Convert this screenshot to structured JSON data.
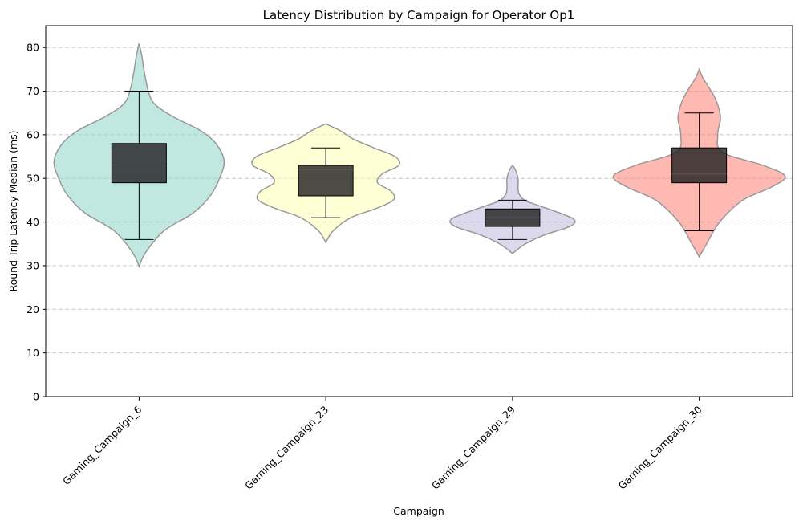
{
  "chart_data": {
    "type": "violin",
    "title": "Latency Distribution by Campaign for Operator Op1",
    "xlabel": "Campaign",
    "ylabel": "Round Trip Latency Median (ms)",
    "ylim": [
      0,
      85
    ],
    "yticks": [
      0,
      10,
      20,
      30,
      40,
      50,
      60,
      70,
      80
    ],
    "grid": "y-dashed",
    "categories": [
      "Gaming_Campaign_6",
      "Gaming_Campaign_23",
      "Gaming_Campaign_29",
      "Gaming_Campaign_30"
    ],
    "series": [
      {
        "category": "Gaming_Campaign_6",
        "color": "#8dd3c7",
        "box": {
          "whisker_low": 36,
          "q1": 49,
          "median": 54,
          "q3": 58,
          "whisker_high": 70
        },
        "density": [
          [
            29.8,
            0
          ],
          [
            33,
            0.07
          ],
          [
            38,
            0.27
          ],
          [
            42,
            0.58
          ],
          [
            46,
            0.77
          ],
          [
            50,
            0.87
          ],
          [
            54,
            0.92
          ],
          [
            58,
            0.83
          ],
          [
            61,
            0.66
          ],
          [
            64,
            0.38
          ],
          [
            67,
            0.17
          ],
          [
            70,
            0.1
          ],
          [
            74,
            0.06
          ],
          [
            78,
            0.03
          ],
          [
            81,
            0
          ]
        ]
      },
      {
        "category": "Gaming_Campaign_23",
        "color": "#ffffb3",
        "box": {
          "whisker_low": 41,
          "q1": 46,
          "median": 52,
          "q3": 53,
          "whisker_high": 57
        },
        "density": [
          [
            35.3,
            0
          ],
          [
            38,
            0.08
          ],
          [
            41,
            0.27
          ],
          [
            43,
            0.53
          ],
          [
            45,
            0.73
          ],
          [
            47,
            0.71
          ],
          [
            49,
            0.56
          ],
          [
            51,
            0.61
          ],
          [
            53,
            0.79
          ],
          [
            55,
            0.75
          ],
          [
            57,
            0.52
          ],
          [
            59,
            0.3
          ],
          [
            61,
            0.15
          ],
          [
            62.5,
            0
          ]
        ]
      },
      {
        "category": "Gaming_Campaign_29",
        "color": "#bebada",
        "box": {
          "whisker_low": 36,
          "q1": 39,
          "median": 41,
          "q3": 43,
          "whisker_high": 45
        },
        "density": [
          [
            32.8,
            0
          ],
          [
            35,
            0.14
          ],
          [
            37,
            0.34
          ],
          [
            39,
            0.62
          ],
          [
            40.5,
            0.67
          ],
          [
            42,
            0.52
          ],
          [
            44,
            0.25
          ],
          [
            45,
            0.13
          ],
          [
            46.5,
            0.07
          ],
          [
            48,
            0.06
          ],
          [
            50,
            0.06
          ],
          [
            52,
            0.03
          ],
          [
            53,
            0
          ]
        ]
      },
      {
        "category": "Gaming_Campaign_30",
        "color": "#fb8072",
        "box": {
          "whisker_low": 38,
          "q1": 49,
          "median": 51,
          "q3": 57,
          "whisker_high": 65
        },
        "density": [
          [
            32,
            0
          ],
          [
            35,
            0.08
          ],
          [
            40,
            0.22
          ],
          [
            45,
            0.47
          ],
          [
            48,
            0.78
          ],
          [
            50.5,
            0.93
          ],
          [
            53,
            0.69
          ],
          [
            56,
            0.25
          ],
          [
            60,
            0.2
          ],
          [
            64,
            0.23
          ],
          [
            68,
            0.18
          ],
          [
            71,
            0.1
          ],
          [
            73,
            0.04
          ],
          [
            75,
            0
          ]
        ]
      }
    ]
  }
}
